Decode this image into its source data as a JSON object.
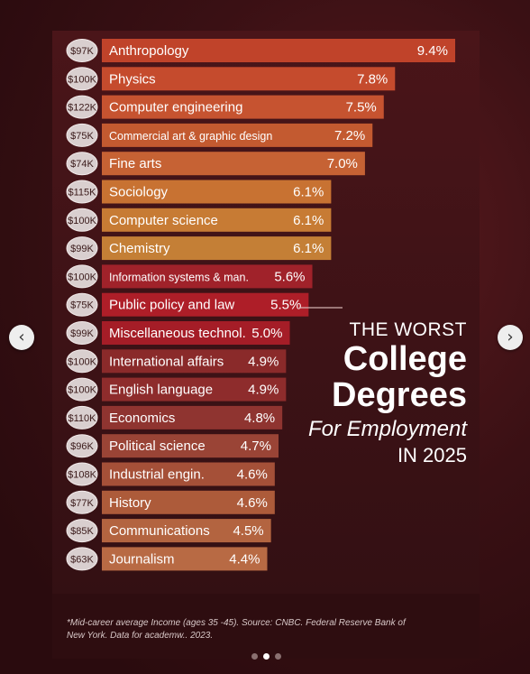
{
  "title": {
    "pre": "THE WORST",
    "main_line1": "College",
    "main_line2": "Degrees",
    "sub": "For Employment",
    "year": "IN 2025"
  },
  "footnote": "*Mid-career average Income (ages 35 -45). Source: CNBC. Federal Reserve Bank of New York. Data for academw.. 2023.",
  "nav": {
    "prev_icon": "‹",
    "next_icon": "›"
  },
  "carousel": {
    "dots": 3,
    "active_dot": 1
  },
  "chart_data": {
    "type": "bar",
    "orientation": "horizontal",
    "value_unit": "unemployment rate (%)",
    "categories": [
      "Anthropology",
      "Physics",
      "Computer engineering",
      "Commercial art & graphic ɗesign",
      "Fine arts",
      "Sociology",
      "Computer science",
      "Chemistry",
      "Information systems & man.",
      "Public policy and law",
      "Miscellaneous technol.",
      "International affairs",
      "English language",
      "Economics",
      "Political science",
      "Industrial engin.",
      "History",
      "Communications",
      "Journalism"
    ],
    "values": [
      9.4,
      7.8,
      7.5,
      7.2,
      7.0,
      6.1,
      6.1,
      6.1,
      5.6,
      5.5,
      5.0,
      4.9,
      4.9,
      4.8,
      4.7,
      4.6,
      4.6,
      4.5,
      4.4
    ],
    "value_labels": [
      "9.4%",
      "7.8%",
      "7.5%",
      "7.2%",
      "7.0%",
      "6.1%",
      "6.1%",
      "6.1%",
      "5.6%",
      "5.5%",
      "5.0%",
      "4.9%",
      "4.9%",
      "4.8%",
      "4.7%",
      "4.6%",
      "4.6%",
      "4.5%",
      "4.4%"
    ],
    "incomes": [
      "$97K",
      "$100K",
      "$122K",
      "$75K",
      "$74K",
      "$115K",
      "$100K",
      "$99K",
      "$100K",
      "$75K",
      "$99K",
      "$100K",
      "$100K",
      "$110K",
      "$96K",
      "$108K",
      "$77K",
      "$85K",
      "$63K"
    ],
    "bar_colors": [
      "#c0432a",
      "#c54b2d",
      "#c65330",
      "#c35a30",
      "#c66234",
      "#c87232",
      "#c77b34",
      "#c47f36",
      "#a0222a",
      "#ae1e28",
      "#a51d27",
      "#8a2a2a",
      "#8e2c2c",
      "#8f3430",
      "#9a4436",
      "#a55038",
      "#ad5b3a",
      "#b36440",
      "#b86a44"
    ],
    "xlim": [
      0,
      10
    ],
    "grid": false,
    "legend": "none"
  }
}
